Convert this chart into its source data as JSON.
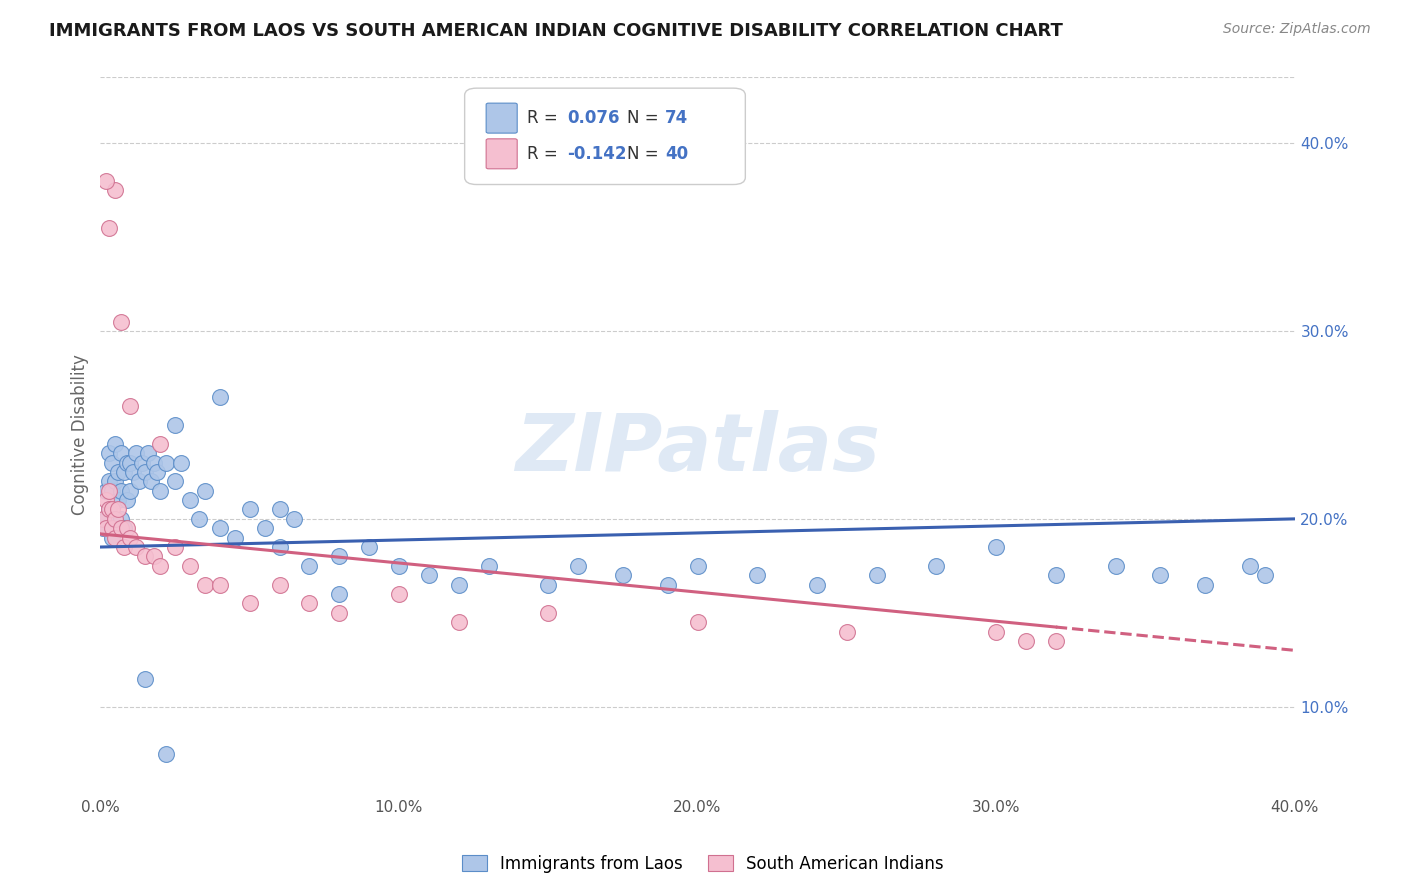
{
  "title": "IMMIGRANTS FROM LAOS VS SOUTH AMERICAN INDIAN COGNITIVE DISABILITY CORRELATION CHART",
  "source": "Source: ZipAtlas.com",
  "ylabel": "Cognitive Disability",
  "legend_label1": "Immigrants from Laos",
  "legend_label2": "South American Indians",
  "R1": 0.076,
  "N1": 74,
  "R2": -0.142,
  "N2": 40,
  "color_blue": "#aec6e8",
  "color_blue_edge": "#5b8dc8",
  "color_blue_line": "#3a60b0",
  "color_pink": "#f5bfd0",
  "color_pink_edge": "#d07090",
  "color_pink_line": "#d06080",
  "xlim": [
    0.0,
    0.4
  ],
  "ylim": [
    0.055,
    0.435
  ],
  "xticks": [
    0.0,
    0.1,
    0.2,
    0.3,
    0.4
  ],
  "yticks_right": [
    0.1,
    0.2,
    0.3,
    0.4
  ],
  "ytick_labels_right": [
    "10.0%",
    "20.0%",
    "30.0%",
    "40.0%"
  ],
  "xtick_labels": [
    "0.0%",
    "10.0%",
    "20.0%",
    "30.0%",
    "40.0%"
  ],
  "blue_x": [
    0.001,
    0.002,
    0.002,
    0.003,
    0.003,
    0.003,
    0.004,
    0.004,
    0.004,
    0.005,
    0.005,
    0.005,
    0.006,
    0.006,
    0.007,
    0.007,
    0.007,
    0.008,
    0.008,
    0.009,
    0.009,
    0.01,
    0.01,
    0.011,
    0.012,
    0.013,
    0.014,
    0.015,
    0.016,
    0.017,
    0.018,
    0.019,
    0.02,
    0.022,
    0.025,
    0.027,
    0.03,
    0.033,
    0.035,
    0.04,
    0.045,
    0.05,
    0.055,
    0.06,
    0.065,
    0.07,
    0.08,
    0.09,
    0.1,
    0.11,
    0.12,
    0.13,
    0.15,
    0.16,
    0.175,
    0.19,
    0.2,
    0.22,
    0.24,
    0.26,
    0.28,
    0.3,
    0.32,
    0.34,
    0.355,
    0.37,
    0.385,
    0.39,
    0.025,
    0.04,
    0.06,
    0.08,
    0.015,
    0.022
  ],
  "blue_y": [
    0.195,
    0.2,
    0.215,
    0.205,
    0.22,
    0.235,
    0.19,
    0.215,
    0.23,
    0.2,
    0.22,
    0.24,
    0.21,
    0.225,
    0.2,
    0.215,
    0.235,
    0.195,
    0.225,
    0.21,
    0.23,
    0.215,
    0.23,
    0.225,
    0.235,
    0.22,
    0.23,
    0.225,
    0.235,
    0.22,
    0.23,
    0.225,
    0.215,
    0.23,
    0.22,
    0.23,
    0.21,
    0.2,
    0.215,
    0.195,
    0.19,
    0.205,
    0.195,
    0.185,
    0.2,
    0.175,
    0.18,
    0.185,
    0.175,
    0.17,
    0.165,
    0.175,
    0.165,
    0.175,
    0.17,
    0.165,
    0.175,
    0.17,
    0.165,
    0.17,
    0.175,
    0.185,
    0.17,
    0.175,
    0.17,
    0.165,
    0.175,
    0.17,
    0.25,
    0.265,
    0.205,
    0.16,
    0.115,
    0.075
  ],
  "pink_x": [
    0.001,
    0.002,
    0.002,
    0.003,
    0.003,
    0.004,
    0.004,
    0.005,
    0.005,
    0.006,
    0.007,
    0.008,
    0.009,
    0.01,
    0.012,
    0.015,
    0.018,
    0.02,
    0.025,
    0.03,
    0.035,
    0.04,
    0.05,
    0.06,
    0.07,
    0.08,
    0.1,
    0.12,
    0.15,
    0.2,
    0.25,
    0.3,
    0.31,
    0.32,
    0.003,
    0.005,
    0.007,
    0.01,
    0.02,
    0.002
  ],
  "pink_y": [
    0.2,
    0.195,
    0.21,
    0.205,
    0.215,
    0.195,
    0.205,
    0.19,
    0.2,
    0.205,
    0.195,
    0.185,
    0.195,
    0.19,
    0.185,
    0.18,
    0.18,
    0.175,
    0.185,
    0.175,
    0.165,
    0.165,
    0.155,
    0.165,
    0.155,
    0.15,
    0.16,
    0.145,
    0.15,
    0.145,
    0.14,
    0.14,
    0.135,
    0.135,
    0.355,
    0.375,
    0.305,
    0.26,
    0.24,
    0.38
  ],
  "watermark": "ZIPatlas",
  "background_color": "#ffffff",
  "grid_color": "#cccccc",
  "blue_line_start_y": 0.185,
  "blue_line_end_y": 0.2,
  "pink_line_start_y": 0.192,
  "pink_line_end_y": 0.13
}
